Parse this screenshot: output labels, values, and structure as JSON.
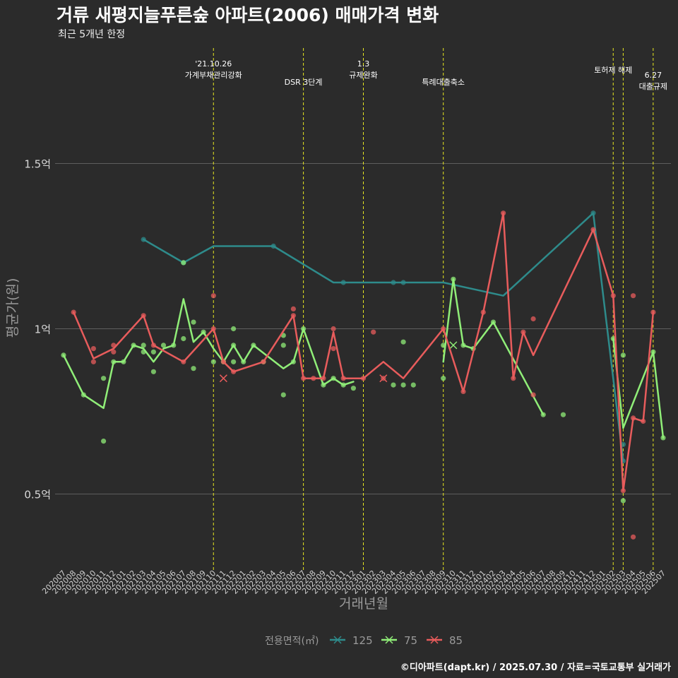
{
  "chart_data": {
    "type": "line",
    "title": "거류 새평지늘푸른숲 아파트(2006) 매매가격 변화",
    "subtitle": "최근 5개년 한정",
    "xlabel": "거래년월",
    "ylabel": "평균가(원)",
    "caption": "©디아파트(dapt.kr) / 2025.07.30 / 자료=국토교통부 실거래가",
    "legend_title": "전용면적(㎡)",
    "legend_position": "bottom",
    "grid": true,
    "y_ticks": [
      {
        "value": 0.5,
        "label": "0.5억"
      },
      {
        "value": 1.0,
        "label": "1억"
      },
      {
        "value": 1.5,
        "label": "1.5억"
      }
    ],
    "ylim": [
      0.3,
      1.8
    ],
    "x_months": [
      "202007",
      "202008",
      "202009",
      "202010",
      "202011",
      "202012",
      "202101",
      "202102",
      "202103",
      "202104",
      "202105",
      "202106",
      "202107",
      "202108",
      "202109",
      "202110",
      "202111",
      "202112",
      "202201",
      "202202",
      "202203",
      "202204",
      "202205",
      "202206",
      "202207",
      "202208",
      "202209",
      "202210",
      "202211",
      "202212",
      "202301",
      "202302",
      "202303",
      "202304",
      "202305",
      "202306",
      "202307",
      "202308",
      "202309",
      "202310",
      "202311",
      "202312",
      "202401",
      "202402",
      "202403",
      "202404",
      "202405",
      "202406",
      "202407",
      "202408",
      "202409",
      "202410",
      "202411",
      "202412",
      "202501",
      "202502",
      "202503",
      "202504",
      "202505",
      "202506",
      "202507"
    ],
    "events": [
      {
        "x": "202110",
        "label_lines": [
          "'21.10.26",
          "가계부채관리강화"
        ]
      },
      {
        "x": "202207",
        "label_lines": [
          "DSR 3단계"
        ]
      },
      {
        "x": "202301",
        "label_lines": [
          "1.3",
          "규제완화"
        ]
      },
      {
        "x": "202309",
        "label_lines": [
          "특례대출축소"
        ]
      },
      {
        "x": "202502",
        "label_lines": [
          "토허제 해제"
        ]
      },
      {
        "x": "202503",
        "label_lines": [
          ""
        ]
      },
      {
        "x": "202506",
        "label_lines": [
          "6.27",
          "대출규제"
        ]
      }
    ],
    "series": [
      {
        "name": "125",
        "color": "#2e8b8b",
        "line": [
          [
            "202103",
            1.27
          ],
          [
            "202107",
            1.2
          ],
          [
            "202110",
            1.25
          ],
          [
            "202204",
            1.25
          ],
          [
            "202210",
            1.14
          ],
          [
            "202211",
            1.14
          ],
          [
            "202309",
            1.14
          ],
          [
            "202403",
            1.1
          ],
          [
            "202412",
            1.35
          ],
          [
            "202503",
            0.6
          ]
        ],
        "points": [
          [
            "202103",
            1.27
          ],
          [
            "202107",
            1.2
          ],
          [
            "202204",
            1.25
          ],
          [
            "202211",
            1.14
          ],
          [
            "202304",
            1.14
          ],
          [
            "202305",
            1.14
          ],
          [
            "202412",
            1.35
          ],
          [
            "202503",
            0.65
          ],
          [
            "202503",
            0.6
          ]
        ],
        "crosses": []
      },
      {
        "name": "75",
        "color": "#90ee78",
        "line": [
          [
            "202007",
            0.92
          ],
          [
            "202009",
            0.8
          ],
          [
            "202011",
            0.76
          ],
          [
            "202012",
            0.9
          ],
          [
            "202101",
            0.9
          ],
          [
            "202102",
            0.95
          ],
          [
            "202103",
            0.94
          ],
          [
            "202104",
            0.9
          ],
          [
            "202105",
            0.94
          ],
          [
            "202106",
            0.95
          ],
          [
            "202107",
            1.09
          ],
          [
            "202108",
            0.96
          ],
          [
            "202109",
            0.99
          ],
          [
            "202110",
            0.94
          ],
          [
            "202111",
            0.9
          ],
          [
            "202112",
            0.95
          ],
          [
            "202201",
            0.9
          ],
          [
            "202202",
            0.95
          ],
          [
            "202205",
            0.88
          ],
          [
            "202206",
            0.9
          ],
          [
            "202207",
            1.0
          ],
          [
            "202209",
            0.83
          ],
          [
            "202210",
            0.85
          ],
          [
            "202211",
            0.83
          ],
          [
            "202212",
            0.84
          ]
        ],
        "line2": [
          [
            "202309",
            0.9
          ],
          [
            "202310",
            1.15
          ],
          [
            "202311",
            0.95
          ],
          [
            "202312",
            0.94
          ],
          [
            "202402",
            1.02
          ],
          [
            "202407",
            0.74
          ]
        ],
        "line3": [
          [
            "202502",
            0.97
          ],
          [
            "202503",
            0.7
          ],
          [
            "202506",
            0.93
          ],
          [
            "202507",
            0.67
          ]
        ],
        "points": [
          [
            "202007",
            0.92
          ],
          [
            "202009",
            0.8
          ],
          [
            "202011",
            0.85
          ],
          [
            "202011",
            0.66
          ],
          [
            "202012",
            0.9
          ],
          [
            "202101",
            0.9
          ],
          [
            "202102",
            0.95
          ],
          [
            "202103",
            0.95
          ],
          [
            "202103",
            0.93
          ],
          [
            "202104",
            0.93
          ],
          [
            "202104",
            0.87
          ],
          [
            "202105",
            0.95
          ],
          [
            "202106",
            0.95
          ],
          [
            "202107",
            0.97
          ],
          [
            "202107",
            1.2
          ],
          [
            "202108",
            1.02
          ],
          [
            "202108",
            0.88
          ],
          [
            "202109",
            0.99
          ],
          [
            "202110",
            0.9
          ],
          [
            "202111",
            0.9
          ],
          [
            "202112",
            0.95
          ],
          [
            "202112",
            1.0
          ],
          [
            "202112",
            0.9
          ],
          [
            "202201",
            0.9
          ],
          [
            "202202",
            0.95
          ],
          [
            "202203",
            0.9
          ],
          [
            "202205",
            0.95
          ],
          [
            "202205",
            0.98
          ],
          [
            "202205",
            0.8
          ],
          [
            "202206",
            0.9
          ],
          [
            "202207",
            1.0
          ],
          [
            "202209",
            0.83
          ],
          [
            "202210",
            0.85
          ],
          [
            "202211",
            0.83
          ],
          [
            "202212",
            0.82
          ],
          [
            "202304",
            0.83
          ],
          [
            "202305",
            0.83
          ],
          [
            "202305",
            0.96
          ],
          [
            "202306",
            0.83
          ],
          [
            "202309",
            0.95
          ],
          [
            "202309",
            0.85
          ],
          [
            "202310",
            1.15
          ],
          [
            "202311",
            0.95
          ],
          [
            "202312",
            0.94
          ],
          [
            "202402",
            1.02
          ],
          [
            "202407",
            0.74
          ],
          [
            "202409",
            0.74
          ],
          [
            "202502",
            0.97
          ],
          [
            "202503",
            0.92
          ],
          [
            "202503",
            0.48
          ],
          [
            "202506",
            0.93
          ],
          [
            "202507",
            0.67
          ]
        ],
        "crosses": [
          [
            "202310",
            0.95
          ]
        ]
      },
      {
        "name": "85",
        "color": "#e85c5c",
        "line": [
          [
            "202008",
            1.05
          ],
          [
            "202010",
            0.91
          ],
          [
            "202012",
            0.94
          ],
          [
            "202103",
            1.04
          ],
          [
            "202104",
            0.95
          ],
          [
            "202107",
            0.9
          ],
          [
            "202110",
            1.0
          ],
          [
            "202111",
            0.9
          ],
          [
            "202112",
            0.87
          ],
          [
            "202203",
            0.9
          ],
          [
            "202206",
            1.04
          ],
          [
            "202207",
            0.85
          ],
          [
            "202209",
            0.85
          ],
          [
            "202210",
            0.99
          ],
          [
            "202211",
            0.85
          ],
          [
            "202301",
            0.85
          ],
          [
            "202303",
            0.9
          ],
          [
            "202305",
            0.85
          ],
          [
            "202309",
            1.0
          ],
          [
            "202311",
            0.81
          ],
          [
            "202401",
            1.05
          ],
          [
            "202403",
            1.35
          ],
          [
            "202404",
            0.85
          ],
          [
            "202405",
            0.99
          ],
          [
            "202406",
            0.92
          ],
          [
            "202412",
            1.3
          ],
          [
            "202502",
            1.1
          ],
          [
            "202503",
            0.51
          ],
          [
            "202504",
            0.73
          ],
          [
            "202505",
            0.72
          ],
          [
            "202506",
            1.05
          ]
        ],
        "points": [
          [
            "202008",
            1.05
          ],
          [
            "202010",
            0.94
          ],
          [
            "202010",
            0.9
          ],
          [
            "202012",
            0.95
          ],
          [
            "202012",
            0.93
          ],
          [
            "202103",
            1.04
          ],
          [
            "202104",
            0.95
          ],
          [
            "202107",
            0.9
          ],
          [
            "202110",
            1.0
          ],
          [
            "202110",
            1.1
          ],
          [
            "202111",
            0.9
          ],
          [
            "202112",
            0.87
          ],
          [
            "202203",
            0.9
          ],
          [
            "202206",
            1.06
          ],
          [
            "202206",
            1.04
          ],
          [
            "202207",
            0.85
          ],
          [
            "202208",
            0.85
          ],
          [
            "202209",
            0.85
          ],
          [
            "202210",
            1.0
          ],
          [
            "202210",
            0.94
          ],
          [
            "202211",
            0.85
          ],
          [
            "202301",
            0.85
          ],
          [
            "202302",
            0.99
          ],
          [
            "202303",
            0.85
          ],
          [
            "202309",
            1.0
          ],
          [
            "202311",
            0.81
          ],
          [
            "202401",
            1.05
          ],
          [
            "202403",
            1.35
          ],
          [
            "202404",
            0.85
          ],
          [
            "202405",
            0.99
          ],
          [
            "202406",
            1.03
          ],
          [
            "202406",
            0.8
          ],
          [
            "202412",
            1.3
          ],
          [
            "202502",
            1.1
          ],
          [
            "202503",
            0.51
          ],
          [
            "202504",
            0.73
          ],
          [
            "202504",
            1.1
          ],
          [
            "202504",
            0.37
          ],
          [
            "202505",
            0.72
          ],
          [
            "202506",
            1.05
          ]
        ],
        "crosses": [
          [
            "202111",
            0.85
          ],
          [
            "202303",
            0.85
          ]
        ]
      }
    ]
  }
}
